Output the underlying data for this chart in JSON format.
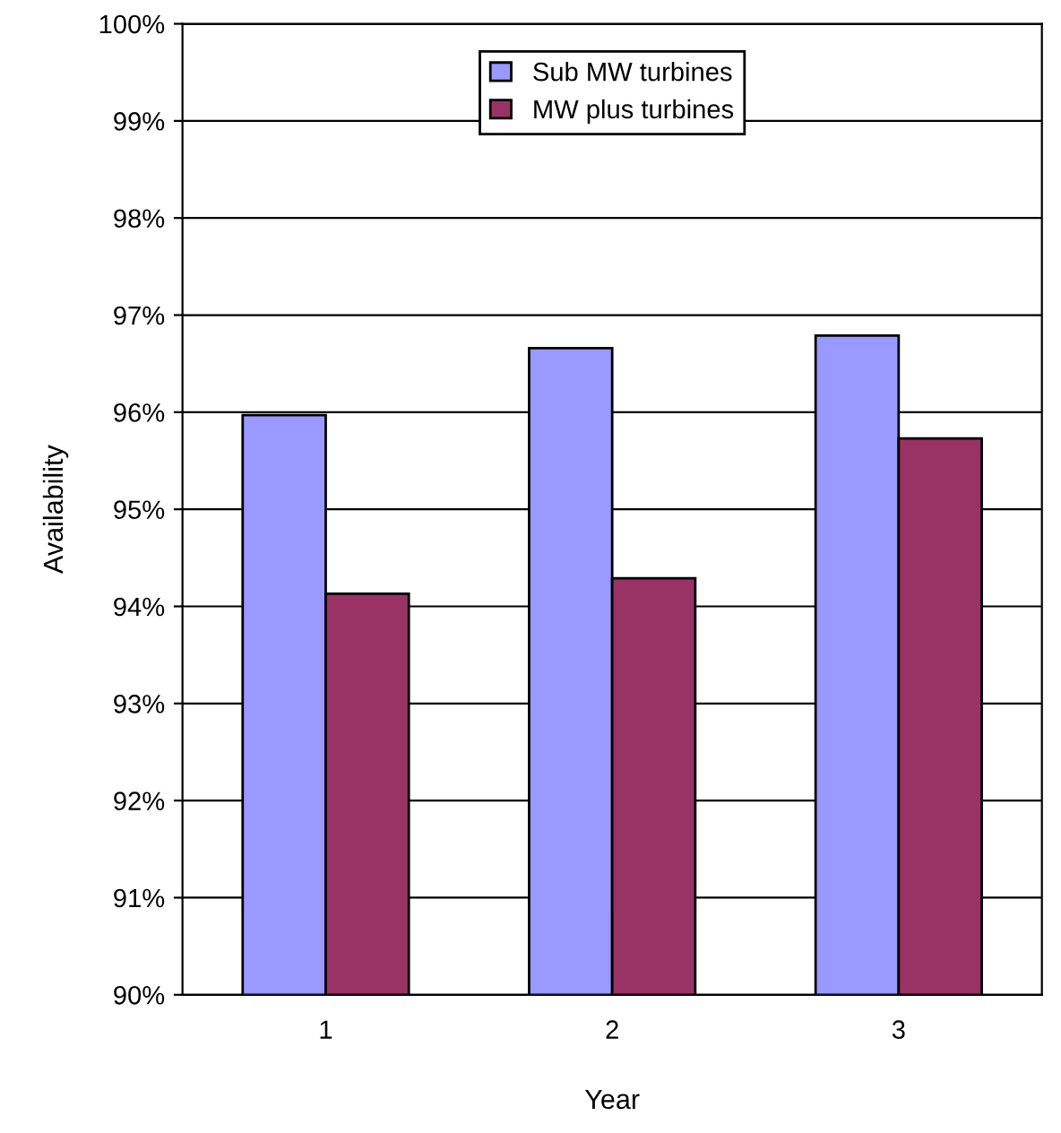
{
  "chart_data": {
    "type": "bar",
    "xlabel": "Year",
    "ylabel": "Availability",
    "categories": [
      "1",
      "2",
      "3"
    ],
    "series": [
      {
        "name": "Sub MW turbines",
        "color": "#9999ff",
        "values": [
          95.97,
          96.66,
          96.79
        ]
      },
      {
        "name": "MW plus turbines",
        "color": "#993366",
        "values": [
          94.13,
          94.29,
          95.73
        ]
      }
    ],
    "ylim": [
      90,
      100
    ],
    "yticks": [
      {
        "value": 90,
        "label": "90%"
      },
      {
        "value": 91,
        "label": "91%"
      },
      {
        "value": 92,
        "label": "92%"
      },
      {
        "value": 93,
        "label": "93%"
      },
      {
        "value": 94,
        "label": "94%"
      },
      {
        "value": 95,
        "label": "95%"
      },
      {
        "value": 96,
        "label": "96%"
      },
      {
        "value": 97,
        "label": "97%"
      },
      {
        "value": 98,
        "label": "98%"
      },
      {
        "value": 99,
        "label": "99%"
      },
      {
        "value": 100,
        "label": "100%"
      }
    ],
    "grid": "y",
    "legend": "top"
  }
}
